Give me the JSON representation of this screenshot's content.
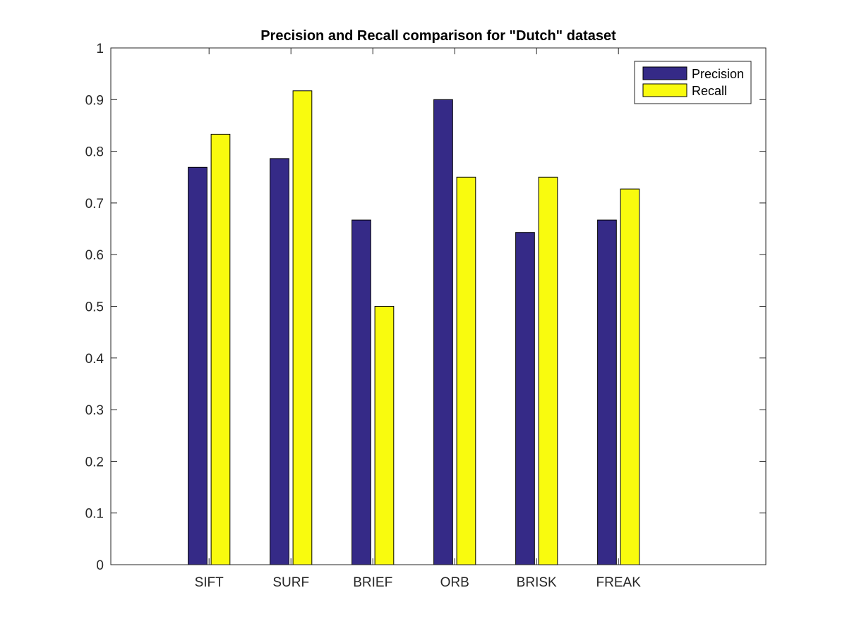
{
  "chart_data": {
    "type": "bar",
    "title": "Precision and Recall comparison for \"Dutch\" dataset",
    "xlabel": "",
    "ylabel": "",
    "categories": [
      "SIFT",
      "SURF",
      "BRIEF",
      "ORB",
      "BRISK",
      "FREAK"
    ],
    "series": [
      {
        "name": "Precision",
        "color": "#352a87",
        "values": [
          0.769,
          0.786,
          0.667,
          0.9,
          0.643,
          0.667
        ]
      },
      {
        "name": "Recall",
        "color": "#f9fb0e",
        "values": [
          0.833,
          0.917,
          0.5,
          0.75,
          0.75,
          0.727
        ]
      }
    ],
    "ylim": [
      0,
      1
    ],
    "yticks": [
      "0",
      "0.1",
      "0.2",
      "0.3",
      "0.4",
      "0.5",
      "0.6",
      "0.7",
      "0.8",
      "0.9",
      "1"
    ],
    "xlim": [
      -0.2,
      7.8
    ],
    "grid": false,
    "legend_position": "top-right"
  }
}
